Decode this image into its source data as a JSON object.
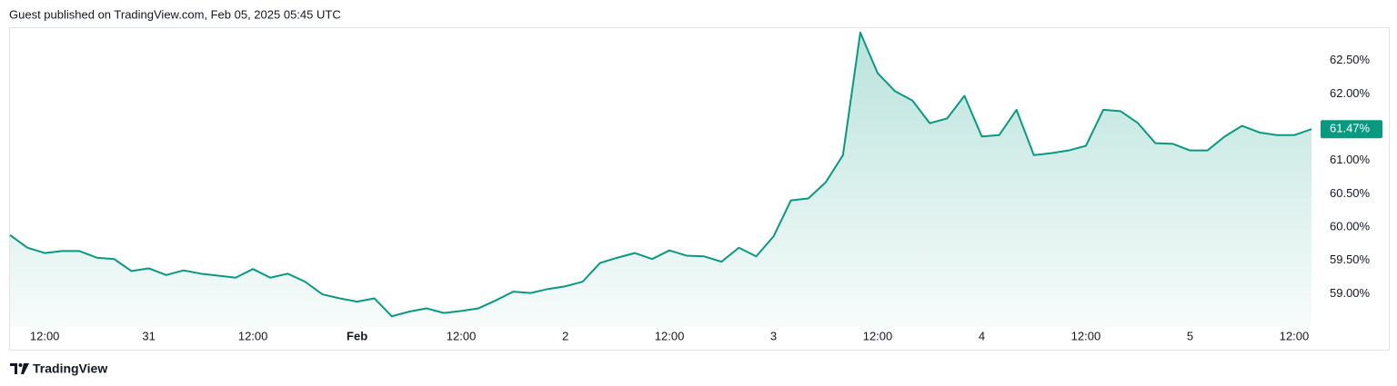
{
  "chart_data": {
    "type": "area",
    "title": "Guest published on TradingView.com, Feb 05, 2025 05:45 UTC",
    "source": "TradingView",
    "categories": [
      null,
      null,
      "12:00",
      null,
      null,
      null,
      null,
      null,
      "31",
      null,
      null,
      null,
      null,
      null,
      "12:00",
      null,
      null,
      null,
      null,
      null,
      "Feb",
      null,
      null,
      null,
      null,
      null,
      "12:00",
      null,
      null,
      null,
      null,
      null,
      "2",
      null,
      null,
      null,
      null,
      null,
      "12:00",
      null,
      null,
      null,
      null,
      null,
      "3",
      null,
      null,
      null,
      null,
      null,
      "12:00",
      null,
      null,
      null,
      null,
      null,
      "4",
      null,
      null,
      null,
      null,
      null,
      "12:00",
      null,
      null,
      null,
      null,
      null,
      "5",
      null,
      null,
      null,
      null,
      null,
      "12:00",
      null
    ],
    "values": [
      59.88,
      59.69,
      59.61,
      59.64,
      59.64,
      59.54,
      59.52,
      59.34,
      59.38,
      59.28,
      59.35,
      59.3,
      59.27,
      59.24,
      59.37,
      59.24,
      59.3,
      59.18,
      58.99,
      58.93,
      58.88,
      58.93,
      58.66,
      58.73,
      58.78,
      58.71,
      58.74,
      58.78,
      58.9,
      59.03,
      59.01,
      59.07,
      59.11,
      59.18,
      59.46,
      59.54,
      59.61,
      59.52,
      59.65,
      59.57,
      59.56,
      59.48,
      59.69,
      59.56,
      59.86,
      60.4,
      60.43,
      60.67,
      61.08,
      62.92,
      62.31,
      62.04,
      61.9,
      61.56,
      61.63,
      61.97,
      61.36,
      61.38,
      61.76,
      61.08,
      61.11,
      61.15,
      61.22,
      61.76,
      61.74,
      61.56,
      61.26,
      61.25,
      61.15,
      61.15,
      61.36,
      61.52,
      61.42,
      61.38,
      61.38,
      61.47
    ],
    "last_label": "61.47%",
    "color": "#089981",
    "ylim": [
      58.5,
      63.0
    ],
    "yticks": [
      {
        "value": 59.0,
        "label": "59.00%"
      },
      {
        "value": 59.5,
        "label": "59.50%"
      },
      {
        "value": 60.0,
        "label": "60.00%"
      },
      {
        "value": 60.5,
        "label": "60.50%"
      },
      {
        "value": 61.0,
        "label": "61.00%"
      },
      {
        "value": 61.5,
        "label": "61.50%"
      },
      {
        "value": 62.0,
        "label": "62.00%"
      },
      {
        "value": 62.5,
        "label": "62.50%"
      }
    ],
    "grid": false
  }
}
